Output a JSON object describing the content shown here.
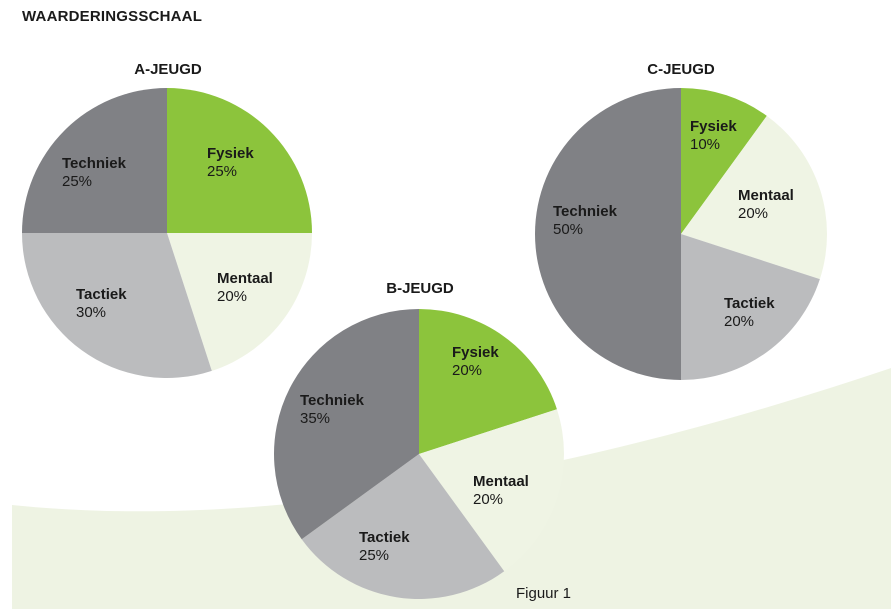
{
  "heading": "WAARDERINGSSCHAAL",
  "caption": "Figuur 1",
  "colors": {
    "Fysiek": "#8cc43c",
    "Mentaal": "#eff4e4",
    "Tactiek": "#bbbcbe",
    "Techniek": "#808185",
    "background_swoosh": "#eef3e3"
  },
  "chart_data": [
    {
      "type": "pie",
      "title": "A-JEUGD",
      "categories": [
        "Fysiek",
        "Mentaal",
        "Tactiek",
        "Techniek"
      ],
      "values": [
        25,
        20,
        30,
        25
      ],
      "value_labels": [
        "25%",
        "20%",
        "30%",
        "25%"
      ]
    },
    {
      "type": "pie",
      "title": "B-JEUGD",
      "categories": [
        "Fysiek",
        "Mentaal",
        "Tactiek",
        "Techniek"
      ],
      "values": [
        20,
        20,
        25,
        35
      ],
      "value_labels": [
        "20%",
        "20%",
        "25%",
        "35%"
      ]
    },
    {
      "type": "pie",
      "title": "C-JEUGD",
      "categories": [
        "Fysiek",
        "Mentaal",
        "Tactiek",
        "Techniek"
      ],
      "values": [
        10,
        20,
        20,
        50
      ],
      "value_labels": [
        "10%",
        "20%",
        "20%",
        "50%"
      ]
    }
  ]
}
